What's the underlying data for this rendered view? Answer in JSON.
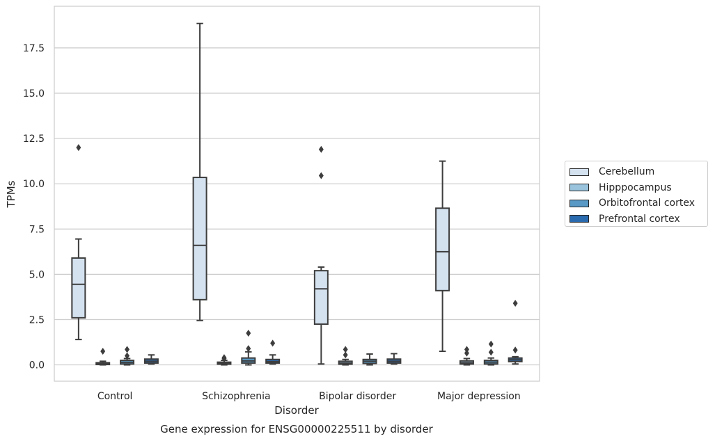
{
  "chart_data": {
    "type": "box",
    "title": "",
    "caption": "Gene expression for ENSG00000225511 by disorder",
    "xlabel": "Disorder",
    "ylabel": "TPMs",
    "ylim": [
      -0.9,
      19.8
    ],
    "yticks": [
      0.0,
      2.5,
      5.0,
      7.5,
      10.0,
      12.5,
      15.0,
      17.5
    ],
    "ytick_labels": [
      "0.0",
      "2.5",
      "5.0",
      "7.5",
      "10.0",
      "12.5",
      "15.0",
      "17.5"
    ],
    "grid": true,
    "legend_position": "right-center",
    "categories": [
      "Control",
      "Schizophrenia",
      "Bipolar disorder",
      "Major depression"
    ],
    "series": [
      {
        "name": "Cerebellum",
        "color": "#d4e2f0",
        "boxes": [
          {
            "whisker_low": 1.4,
            "q1": 2.6,
            "median": 4.45,
            "q3": 5.9,
            "whisker_high": 6.95,
            "outliers": [
              12.0
            ]
          },
          {
            "whisker_low": 2.45,
            "q1": 3.6,
            "median": 6.6,
            "q3": 10.35,
            "whisker_high": 18.85,
            "outliers": []
          },
          {
            "whisker_low": 0.05,
            "q1": 2.25,
            "median": 4.2,
            "q3": 5.2,
            "whisker_high": 5.4,
            "outliers": [
              10.45,
              11.9
            ]
          },
          {
            "whisker_low": 0.75,
            "q1": 4.1,
            "median": 6.25,
            "q3": 8.65,
            "whisker_high": 11.25,
            "outliers": []
          }
        ]
      },
      {
        "name": "Hipppocampus",
        "color": "#9ac4de",
        "boxes": [
          {
            "whisker_low": 0.0,
            "q1": 0.02,
            "median": 0.06,
            "q3": 0.12,
            "whisker_high": 0.2,
            "outliers": [
              0.75
            ]
          },
          {
            "whisker_low": 0.0,
            "q1": 0.04,
            "median": 0.09,
            "q3": 0.15,
            "whisker_high": 0.25,
            "outliers": [
              0.4,
              0.35
            ]
          },
          {
            "whisker_low": 0.0,
            "q1": 0.04,
            "median": 0.1,
            "q3": 0.2,
            "whisker_high": 0.3,
            "outliers": [
              0.55,
              0.85
            ]
          },
          {
            "whisker_low": 0.0,
            "q1": 0.05,
            "median": 0.12,
            "q3": 0.22,
            "whisker_high": 0.35,
            "outliers": [
              0.85,
              0.65
            ]
          }
        ]
      },
      {
        "name": "Orbitofrontal cortex",
        "color": "#5899c5",
        "boxes": [
          {
            "whisker_low": 0.0,
            "q1": 0.05,
            "median": 0.14,
            "q3": 0.25,
            "whisker_high": 0.35,
            "outliers": [
              0.85,
              0.5
            ]
          },
          {
            "whisker_low": 0.0,
            "q1": 0.1,
            "median": 0.22,
            "q3": 0.38,
            "whisker_high": 0.72,
            "outliers": [
              0.9,
              1.75
            ]
          },
          {
            "whisker_low": 0.0,
            "q1": 0.08,
            "median": 0.2,
            "q3": 0.3,
            "whisker_high": 0.6,
            "outliers": []
          },
          {
            "whisker_low": 0.0,
            "q1": 0.05,
            "median": 0.15,
            "q3": 0.25,
            "whisker_high": 0.38,
            "outliers": [
              1.15,
              0.7
            ]
          }
        ]
      },
      {
        "name": "Prefrontal cortex",
        "color": "#2a6aae",
        "boxes": [
          {
            "whisker_low": 0.05,
            "q1": 0.1,
            "median": 0.2,
            "q3": 0.32,
            "whisker_high": 0.55,
            "outliers": []
          },
          {
            "whisker_low": 0.05,
            "q1": 0.1,
            "median": 0.18,
            "q3": 0.3,
            "whisker_high": 0.55,
            "outliers": [
              1.2
            ]
          },
          {
            "whisker_low": 0.05,
            "q1": 0.1,
            "median": 0.2,
            "q3": 0.32,
            "whisker_high": 0.62,
            "outliers": []
          },
          {
            "whisker_low": 0.05,
            "q1": 0.18,
            "median": 0.28,
            "q3": 0.38,
            "whisker_high": 0.45,
            "outliers": [
              3.4,
              0.82
            ]
          }
        ]
      }
    ]
  }
}
